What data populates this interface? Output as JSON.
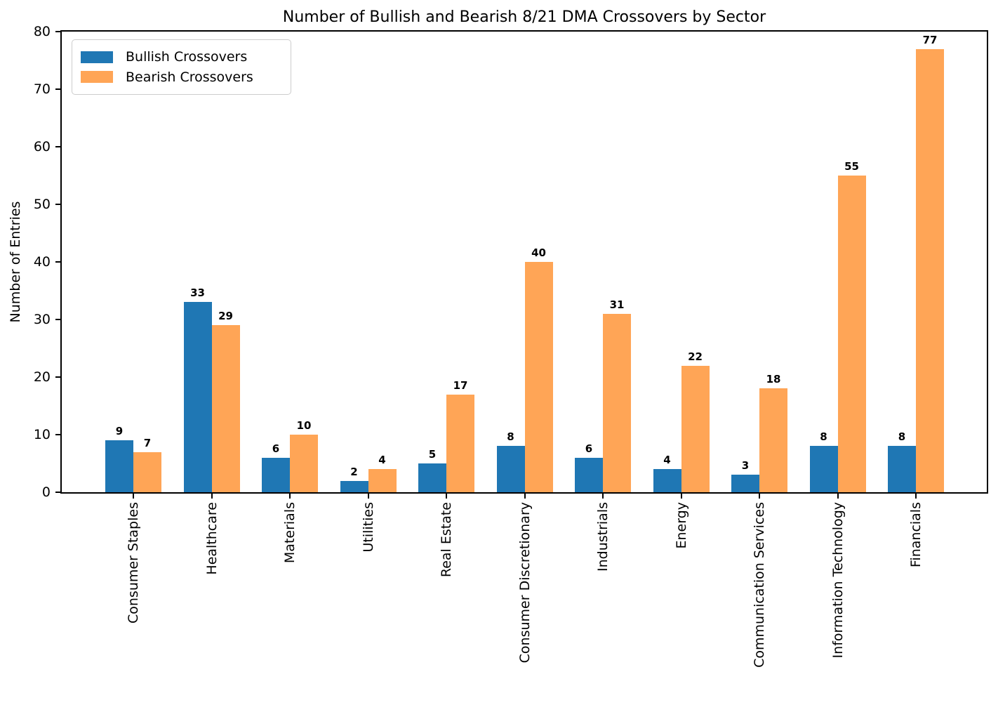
{
  "title": "Number of Bullish and Bearish 8/21 DMA Crossovers by Sector",
  "colors": {
    "bullish": "#1f77b4",
    "bearish": "#ffa556",
    "axis": "#000000",
    "legend_border": "#cccccc",
    "background": "#ffffff",
    "text": "#000000"
  },
  "chart_data": {
    "type": "bar",
    "title": "Number of Bullish and Bearish 8/21 DMA Crossovers by Sector",
    "xlabel": "",
    "ylabel": "Number of Entries",
    "categories": [
      "Consumer Staples",
      "Healthcare",
      "Materials",
      "Utilities",
      "Real Estate",
      "Consumer Discretionary",
      "Industrials",
      "Energy",
      "Communication Services",
      "Information Technology",
      "Financials"
    ],
    "series": [
      {
        "name": "Bullish Crossovers",
        "color": "#1f77b4",
        "values": [
          9,
          33,
          6,
          2,
          5,
          8,
          6,
          4,
          3,
          8,
          8
        ]
      },
      {
        "name": "Bearish Crossovers",
        "color": "#ffa556",
        "values": [
          7,
          29,
          10,
          4,
          17,
          40,
          31,
          22,
          18,
          55,
          77
        ]
      }
    ],
    "ylim": [
      0,
      80
    ],
    "yticks": [
      0,
      10,
      20,
      30,
      40,
      50,
      60,
      70,
      80
    ],
    "grid": false,
    "legend_position": "upper left",
    "bar_value_labels": true,
    "x_tick_rotation_deg": 90
  }
}
